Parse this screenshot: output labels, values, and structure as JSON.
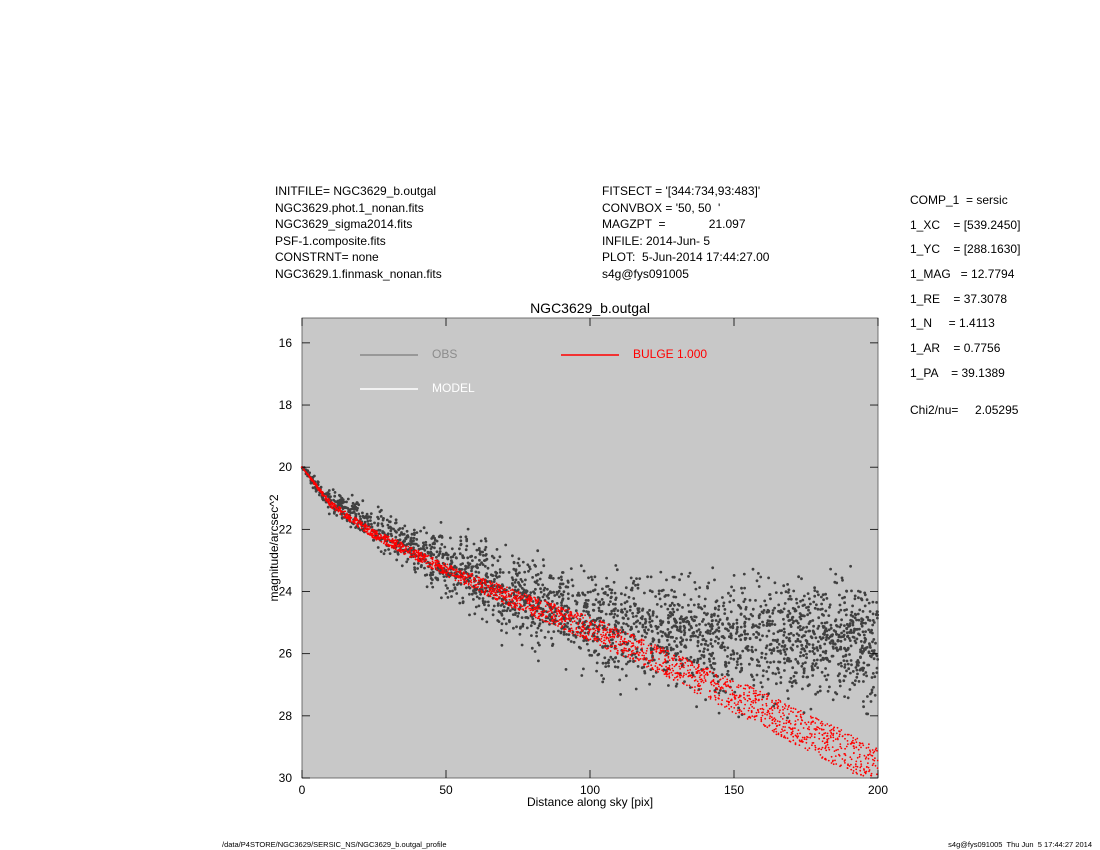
{
  "header_left": [
    "INITFILE= NGC3629_b.outgal",
    "NGC3629.phot.1_nonan.fits",
    "NGC3629_sigma2014.fits",
    "PSF-1.composite.fits",
    "CONSTRNT= none",
    "NGC3629.1.finmask_nonan.fits"
  ],
  "header_mid": [
    "FITSECT = '[344:734,93:483]'",
    "CONVBOX = '50, 50  '",
    "MAGZPT  =             21.097",
    "INFILE: 2014-Jun- 5",
    "PLOT:  5-Jun-2014 17:44:27.00",
    "s4g@fys091005"
  ],
  "header_right": {
    "params": [
      "COMP_1  = sersic",
      "1_XC    = [539.2450]",
      "1_YC    = [288.1630]",
      "1_MAG   = 12.7794",
      "1_RE    = 37.3078",
      "1_N     = 1.4113",
      "1_AR    = 0.7756",
      "1_PA    = 39.1389"
    ],
    "chi2": "Chi2/nu=     2.05295"
  },
  "chart_data": {
    "type": "scatter",
    "title": "NGC3629_b.outgal",
    "xlabel": "Distance along sky [pix]",
    "ylabel": "magnitude/arcsec^2",
    "xlim": [
      0,
      200
    ],
    "ylim": [
      30,
      15.2
    ],
    "x_ticks": [
      "0",
      "50",
      "100",
      "150",
      "200"
    ],
    "y_ticks": [
      "16",
      "18",
      "20",
      "22",
      "24",
      "26",
      "28",
      "30"
    ],
    "y_tick_values": [
      16,
      18,
      20,
      22,
      24,
      26,
      28,
      30
    ],
    "x_tick_values": [
      0,
      50,
      100,
      150,
      200
    ],
    "background_color": "#c8c8c8",
    "legend": [
      {
        "label": "OBS",
        "color": "#888888",
        "text_color": "#8c8c8c"
      },
      {
        "label": "MODEL",
        "color": "#ffffff",
        "text_color": "#ffffff"
      },
      {
        "label": "BULGE  1.000",
        "color": "#ff0000",
        "text_color": "#ff0000"
      }
    ],
    "series": [
      {
        "name": "OBS",
        "color": "#404040",
        "x": [
          0,
          5,
          10,
          20,
          30,
          40,
          50,
          60,
          70,
          80,
          100,
          120,
          150,
          175,
          200
        ],
        "y": [
          20.0,
          20.6,
          21.1,
          21.6,
          22.2,
          22.6,
          23.1,
          23.5,
          24.0,
          24.4,
          24.9,
          25.2,
          25.5,
          25.6,
          25.7
        ],
        "spread": [
          0.05,
          0.2,
          0.35,
          0.5,
          0.6,
          0.7,
          0.9,
          1.0,
          1.1,
          1.2,
          1.4,
          1.5,
          1.6,
          1.7,
          1.8
        ]
      },
      {
        "name": "BULGE",
        "color": "#ff0000",
        "x": [
          0,
          10,
          25,
          50,
          75,
          100,
          125,
          150,
          175,
          200
        ],
        "y_upper": [
          20.0,
          21.1,
          22.0,
          23.1,
          24.0,
          24.8,
          25.8,
          26.8,
          27.9,
          29.0
        ],
        "y_lower": [
          20.0,
          21.3,
          22.3,
          23.5,
          24.6,
          25.6,
          26.7,
          27.9,
          29.1,
          30.3
        ]
      }
    ]
  },
  "footer_left": "/data/P4STORE/NGC3629/SERSIC_NS/NGC3629_b.outgal_profile",
  "footer_right": "s4g@fys091005  Thu Jun  5 17:44:27 2014"
}
